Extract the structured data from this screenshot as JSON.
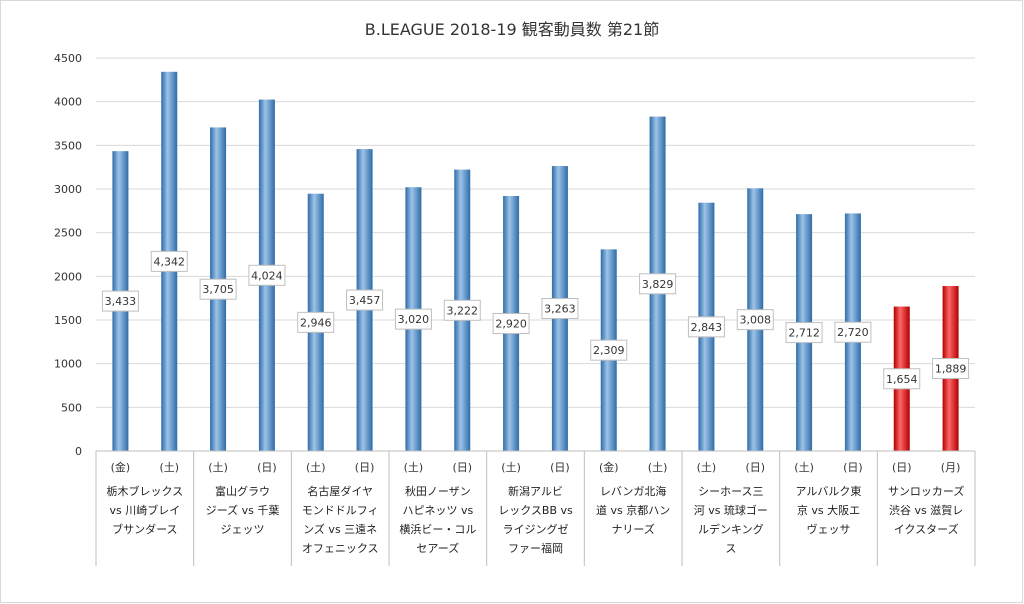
{
  "chart_data": {
    "type": "bar",
    "title": "B.LEAGUE 2018-19 観客動員数 第21節",
    "ylim": [
      0,
      4500
    ],
    "yticks": [
      0,
      500,
      1000,
      1500,
      2000,
      2500,
      3000,
      3500,
      4000,
      4500
    ],
    "grid": true,
    "legend": "none",
    "groups": [
      {
        "label_lines": [
          "栃木ブレックス",
          "vs 川崎ブレイ",
          "ブサンダース"
        ],
        "days": [
          "(金)",
          "(土)"
        ],
        "values": [
          3433,
          4342
        ],
        "data_labels": [
          "3,433",
          "4,342"
        ]
      },
      {
        "label_lines": [
          "富山グラウ",
          "ジーズ vs 千葉",
          "ジェッツ"
        ],
        "days": [
          "(土)",
          "(日)"
        ],
        "values": [
          3705,
          4024
        ],
        "data_labels": [
          "3,705",
          "4,024"
        ]
      },
      {
        "label_lines": [
          "名古屋ダイヤ",
          "モンドドルフィ",
          "ンズ vs 三遠ネ",
          "オフェニックス"
        ],
        "days": [
          "(土)",
          "(日)"
        ],
        "values": [
          2946,
          3457
        ],
        "data_labels": [
          "2,946",
          "3,457"
        ]
      },
      {
        "label_lines": [
          "秋田ノーザン",
          "ハピネッツ vs",
          "横浜ビー・コル",
          "セアーズ"
        ],
        "days": [
          "(土)",
          "(日)"
        ],
        "values": [
          3020,
          3222
        ],
        "data_labels": [
          "3,020",
          "3,222"
        ]
      },
      {
        "label_lines": [
          "新潟アルビ",
          "レックスBB vs",
          "ライジングゼ",
          "ファー福岡"
        ],
        "days": [
          "(土)",
          "(日)"
        ],
        "values": [
          2920,
          3263
        ],
        "data_labels": [
          "2,920",
          "3,263"
        ]
      },
      {
        "label_lines": [
          "レバンガ北海",
          "道 vs 京都ハン",
          "ナリーズ"
        ],
        "days": [
          "(金)",
          "(土)"
        ],
        "values": [
          2309,
          3829
        ],
        "data_labels": [
          "2,309",
          "3,829"
        ]
      },
      {
        "label_lines": [
          "シーホース三",
          "河 vs 琉球ゴー",
          "ルデンキング",
          "ス"
        ],
        "days": [
          "(土)",
          "(日)"
        ],
        "values": [
          2843,
          3008
        ],
        "data_labels": [
          "2,843",
          "3,008"
        ]
      },
      {
        "label_lines": [
          "アルバルク東",
          "京 vs 大阪エ",
          "ヴェッサ"
        ],
        "days": [
          "(土)",
          "(日)"
        ],
        "values": [
          2712,
          2720
        ],
        "data_labels": [
          "2,712",
          "2,720"
        ]
      },
      {
        "label_lines": [
          "サンロッカーズ",
          "渋谷 vs 滋賀レ",
          "イクスターズ"
        ],
        "days": [
          "(日)",
          "(月)"
        ],
        "values": [
          1654,
          1889
        ],
        "data_labels": [
          "1,654",
          "1,889"
        ],
        "highlight": true
      }
    ],
    "colors": {
      "bar": "#5b9bd5",
      "bar_dark": "#2e6ca8",
      "bar_light": "#9dc3e8",
      "highlight": "#ff0000",
      "highlight_dark": "#b00000",
      "highlight_light": "#ff6666",
      "grid": "#d9d9d9",
      "axis": "#bfbfbf",
      "label_border": "#bfbfbf",
      "frame": "#d9d9d9"
    }
  }
}
